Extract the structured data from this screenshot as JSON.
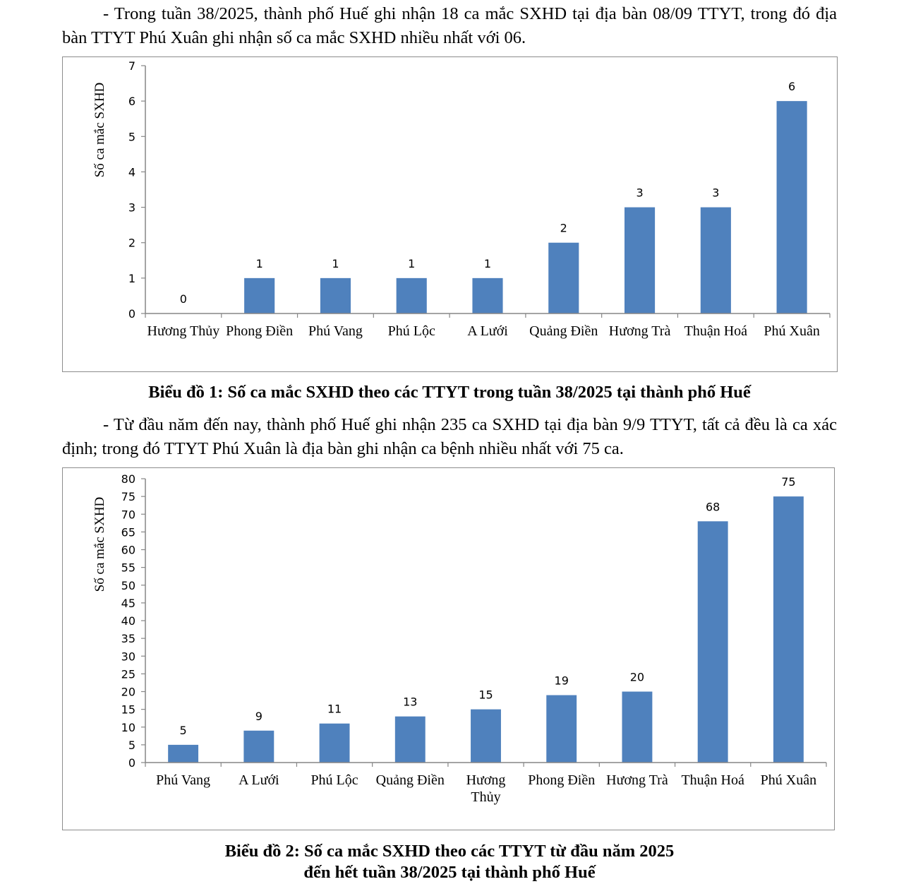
{
  "paragraph1": "- Trong tuần 38/2025, thành phố Huế ghi nhận 18 ca mắc SXHD tại địa bàn 08/09 TTYT, trong đó địa bàn TTYT Phú Xuân ghi nhận số ca mắc SXHD nhiều nhất với 06.",
  "caption1": "Biểu đồ 1: Số ca mắc SXHD theo các TTYT trong tuần 38/2025 tại thành phố Huế",
  "paragraph2": "- Từ đầu năm đến nay, thành phố Huế ghi nhận 235 ca SXHD tại địa bàn 9/9 TTYT, tất cả đều là ca xác định; trong đó TTYT Phú Xuân là địa bàn ghi nhận ca bệnh nhiều nhất với 75 ca.",
  "caption2_line1": "Biểu đồ 2: Số ca mắc SXHD theo các TTYT từ đầu năm 2025",
  "caption2_line2": "đến hết tuần 38/2025 tại thành phố Huế",
  "colors": {
    "bar": "#4f81bd",
    "axis": "#868686",
    "border": "#8c8c8c"
  },
  "chart_data": [
    {
      "type": "bar",
      "title": "Biểu đồ 1: Số ca mắc SXHD theo các TTYT trong tuần 38/2025 tại thành phố Huế",
      "xlabel": "",
      "ylabel": "Số ca mắc SXHD",
      "categories": [
        "Hương Thủy",
        "Phong Điền",
        "Phú Vang",
        "Phú Lộc",
        "A Lưới",
        "Quảng Điền",
        "Hương Trà",
        "Thuận Hoá",
        "Phú Xuân"
      ],
      "values": [
        0,
        1,
        1,
        1,
        1,
        2,
        3,
        3,
        6
      ],
      "data_labels": [
        "0",
        "1",
        "1",
        "1",
        "1",
        "2",
        "3",
        "3",
        "6"
      ],
      "ylim": [
        0,
        7
      ],
      "yticks": [
        0,
        1,
        2,
        3,
        4,
        5,
        6,
        7
      ],
      "grid": false,
      "legend": "none"
    },
    {
      "type": "bar",
      "title": "Biểu đồ 2: Số ca mắc SXHD theo các TTYT từ đầu năm 2025 đến hết tuần 38/2025 tại thành phố Huế",
      "xlabel": "",
      "ylabel": "Số ca mắc SXHD",
      "categories": [
        "Phú Vang",
        "A Lưới",
        "Phú Lộc",
        "Quảng Điền",
        "Hương Thủy",
        "Phong Điền",
        "Hương Trà",
        "Thuận Hoá",
        "Phú Xuân"
      ],
      "values": [
        5,
        9,
        11,
        13,
        15,
        19,
        20,
        68,
        75
      ],
      "data_labels": [
        "5",
        "9",
        "11",
        "13",
        "15",
        "19",
        "20",
        "68",
        "75"
      ],
      "ylim": [
        0,
        80
      ],
      "yticks": [
        0,
        5,
        10,
        15,
        20,
        25,
        30,
        35,
        40,
        45,
        50,
        55,
        60,
        65,
        70,
        75,
        80
      ],
      "grid": false,
      "legend": "none"
    }
  ]
}
